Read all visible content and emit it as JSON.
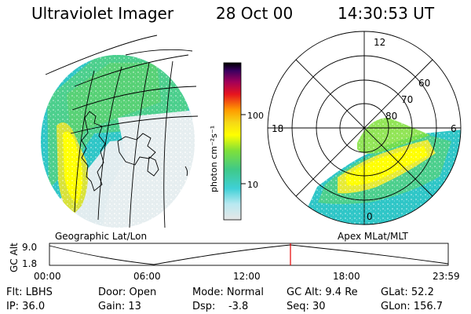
{
  "header": {
    "title": "Ultraviolet Imager",
    "date": "28 Oct 00",
    "time": "14:30:53 UT"
  },
  "left_panel": {
    "label": "Geographic Lat/Lon"
  },
  "right_panel": {
    "label": "Apex MLat/MLT",
    "mlt_labels": {
      "top": "12",
      "left": "18",
      "right": "6",
      "bottom": "0"
    },
    "lat_labels": [
      "60",
      "70",
      "80"
    ]
  },
  "colorbar": {
    "unit_label": "photon cm⁻²s⁻¹",
    "ticks": [
      "100",
      "10"
    ],
    "scale": "log",
    "colors": [
      "#e6e6e6",
      "#b9e9f1",
      "#3fd0d6",
      "#3fc989",
      "#7fe03a",
      "#ffff00",
      "#f5d816",
      "#ff9a00",
      "#e6141e",
      "#a0005a",
      "#3a0060",
      "#000000"
    ]
  },
  "timeline": {
    "ylabel": "GC Alt",
    "yticks": [
      "9.0",
      "1.8"
    ],
    "xticks": [
      "00:00",
      "06:00",
      "12:00",
      "18:00",
      "23:59"
    ],
    "marker_time": "14:30",
    "marker_color": "#e60000"
  },
  "footer": {
    "rows": [
      [
        "Flt: LBHS",
        "Door: Open",
        "Mode: Normal",
        "GC Alt: 9.4 Re",
        "GLat: 52.2"
      ],
      [
        "IP: 36.0",
        "Gain: 13",
        "Dsp:    -3.8",
        "Seq: 30",
        "GLon: 156.7"
      ]
    ]
  }
}
